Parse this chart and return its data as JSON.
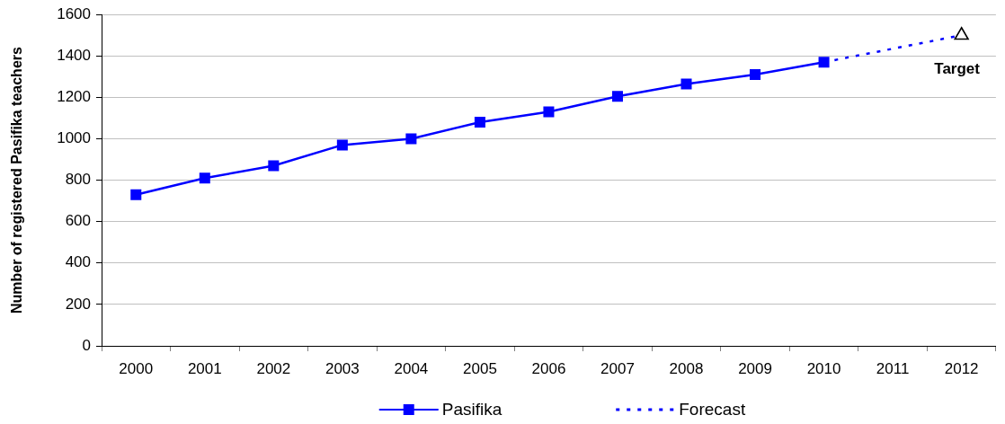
{
  "chart_data": {
    "type": "line",
    "ylabel": "Number of registered Pasifika teachers",
    "categories": [
      "2000",
      "2001",
      "2002",
      "2003",
      "2004",
      "2005",
      "2006",
      "2007",
      "2008",
      "2009",
      "2010",
      "2011",
      "2012"
    ],
    "series": [
      {
        "name": "Pasifika",
        "color": "#0000ff",
        "marker": "square",
        "line_style": "solid",
        "values": [
          730,
          810,
          870,
          970,
          1000,
          1080,
          1130,
          1205,
          1265,
          1310,
          1370,
          null,
          null
        ]
      },
      {
        "name": "Forecast",
        "color": "#0000ff",
        "line_style": "dotted",
        "values": [
          null,
          null,
          null,
          null,
          null,
          null,
          null,
          null,
          null,
          null,
          1370,
          null,
          1500
        ]
      },
      {
        "type": "scatter",
        "color": "#000000",
        "marker": "triangle",
        "values": [
          null,
          null,
          null,
          null,
          null,
          null,
          null,
          null,
          null,
          null,
          null,
          null,
          1500
        ]
      }
    ],
    "annotations": [
      {
        "text": "Target",
        "x": "2012",
        "y": 1500
      }
    ],
    "ylim": [
      0,
      1600
    ],
    "yticks": [
      0,
      200,
      400,
      600,
      800,
      1000,
      1200,
      1400,
      1600
    ],
    "grid": "y",
    "legend": "bottom"
  }
}
